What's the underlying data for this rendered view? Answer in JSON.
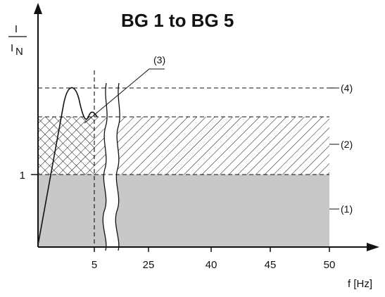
{
  "title": "BG 1 to BG 5",
  "y_axis_label": {
    "numerator": "I",
    "denominator_main": "I",
    "denominator_sub": "N"
  },
  "x_axis_label": "f [Hz]",
  "y_tick_labels": [
    "1"
  ],
  "x_tick_labels": [
    "5",
    "25",
    "40",
    "45",
    "50"
  ],
  "callouts": [
    "(1)",
    "(2)",
    "(3)",
    "(4)"
  ],
  "colors": {
    "region_1_fill": "#c8c8c8",
    "line": "#111111",
    "background": "#ffffff"
  }
}
